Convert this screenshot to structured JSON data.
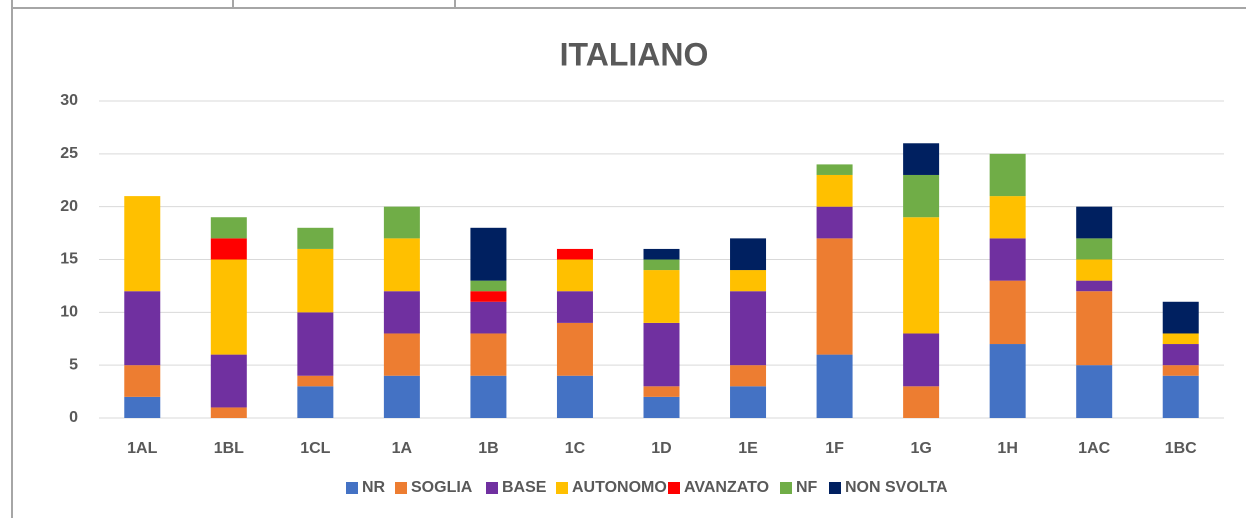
{
  "chart_data": {
    "type": "stacked_bar",
    "title": "ITALIANO",
    "categories": [
      "1AL",
      "1BL",
      "1CL",
      "1A",
      "1B",
      "1C",
      "1D",
      "1E",
      "1F",
      "1G",
      "1H",
      "1AC",
      "1BC"
    ],
    "series": [
      {
        "name": "NR",
        "color": "#4472c4",
        "values": [
          2,
          0,
          3,
          4,
          4,
          4,
          2,
          3,
          6,
          0,
          7,
          5,
          4
        ]
      },
      {
        "name": "SOGLIA",
        "color": "#ed7d31",
        "values": [
          3,
          1,
          1,
          4,
          4,
          5,
          1,
          2,
          11,
          3,
          6,
          7,
          1
        ]
      },
      {
        "name": "BASE",
        "color": "#7030a0",
        "values": [
          7,
          5,
          6,
          4,
          3,
          3,
          6,
          7,
          3,
          5,
          4,
          1,
          2
        ]
      },
      {
        "name": "AUTONOMO",
        "color": "#ffc000",
        "values": [
          9,
          9,
          6,
          5,
          0,
          3,
          5,
          2,
          3,
          11,
          4,
          2,
          1
        ]
      },
      {
        "name": "AVANZATO",
        "color": "#ff0000",
        "values": [
          0,
          2,
          0,
          0,
          1,
          1,
          0,
          0,
          0,
          0,
          0,
          0,
          0
        ]
      },
      {
        "name": "NF",
        "color": "#70ad47",
        "values": [
          0,
          2,
          2,
          3,
          1,
          0,
          1,
          0,
          1,
          4,
          4,
          2,
          0
        ]
      },
      {
        "name": "NON SVOLTA",
        "color": "#002060",
        "values": [
          0,
          0,
          0,
          0,
          5,
          0,
          1,
          3,
          0,
          3,
          0,
          3,
          3
        ]
      }
    ],
    "ylim": [
      0,
      30
    ],
    "yticks": [
      0,
      5,
      10,
      15,
      20,
      25,
      30
    ],
    "grid": true,
    "legend": "bottom"
  }
}
